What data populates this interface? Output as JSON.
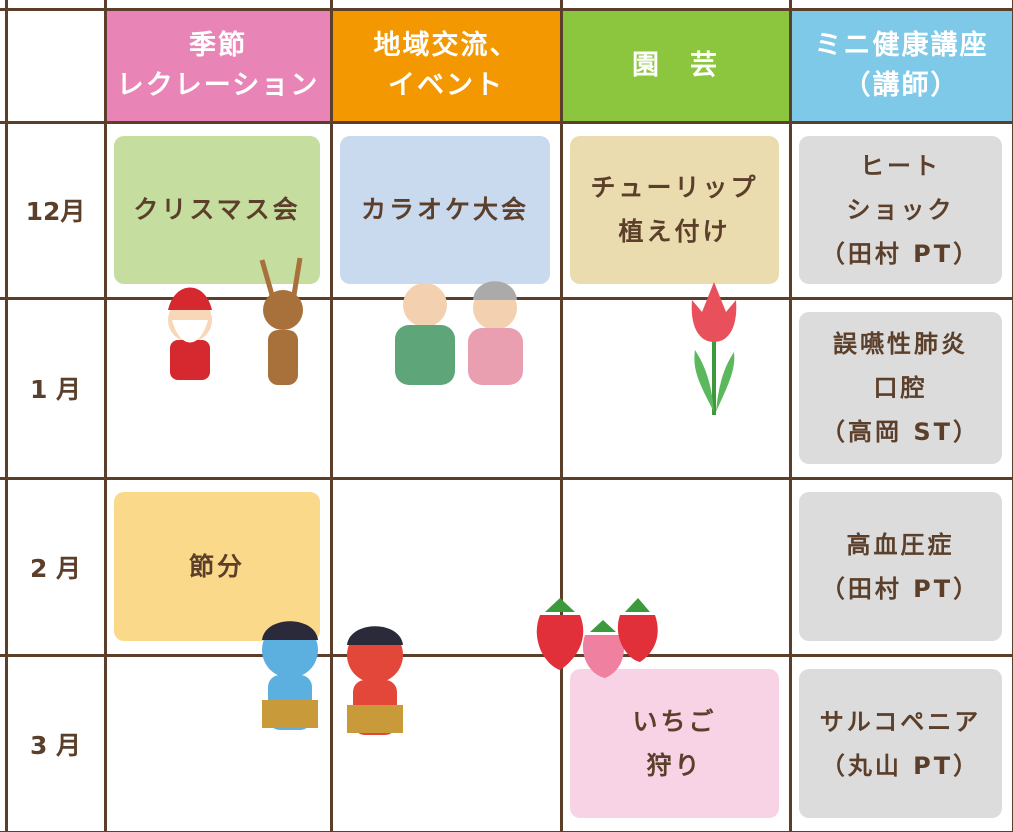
{
  "header": {
    "corner": null,
    "columns": [
      [
        "季節",
        "レクレーション"
      ],
      [
        "地域交流、",
        "イベント"
      ],
      [
        "園　芸"
      ],
      [
        "ミニ健康講座",
        "（講師）"
      ]
    ]
  },
  "rows": [
    {
      "month": "12月",
      "cells": [
        [
          "クリスマス会"
        ],
        [
          "カラオケ大会"
        ],
        [
          "チューリップ",
          "植え付け"
        ],
        [
          "ヒート",
          "ショック",
          "（田村 PT）"
        ]
      ]
    },
    {
      "month": "1 月",
      "cells": [
        null,
        null,
        null,
        [
          "誤嚥性肺炎",
          "口腔",
          "（高岡 ST）"
        ]
      ]
    },
    {
      "month": "2 月",
      "cells": [
        [
          "節分"
        ],
        null,
        null,
        [
          "高血圧症",
          "（田村 PT）"
        ]
      ]
    },
    {
      "month": "3 月",
      "cells": [
        null,
        null,
        [
          "いちご",
          "狩り"
        ],
        [
          "サルコペニア",
          "（丸山 PT）"
        ]
      ]
    }
  ]
}
